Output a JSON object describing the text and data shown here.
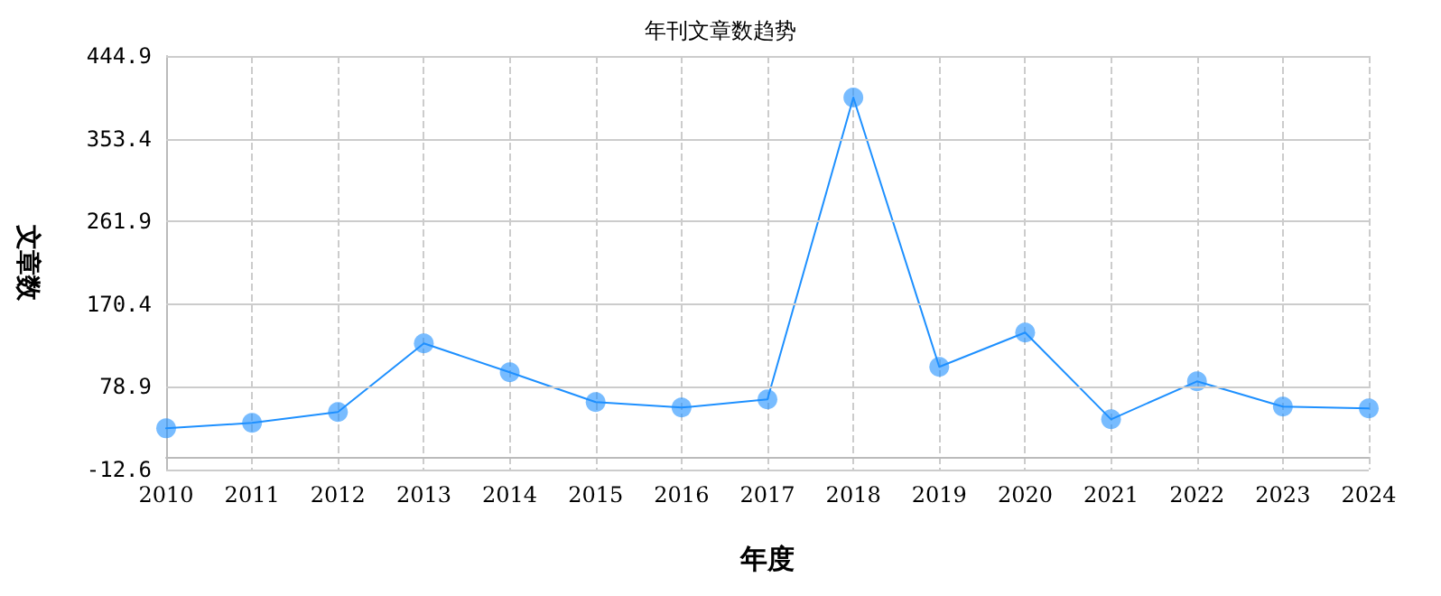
{
  "chart_data": {
    "type": "line",
    "title": "年刊文章数趋势",
    "xlabel": "年度",
    "ylabel": "文章数",
    "categories": [
      "2010",
      "2011",
      "2012",
      "2013",
      "2014",
      "2015",
      "2016",
      "2017",
      "2018",
      "2019",
      "2020",
      "2021",
      "2022",
      "2023",
      "2024"
    ],
    "series": [
      {
        "color": "#1e90ff",
        "values": [
          33,
          39,
          51,
          127,
          95,
          62,
          56,
          65,
          399,
          101,
          139,
          43,
          85,
          57,
          55
        ]
      }
    ],
    "ylim": [
      -12.6,
      444.9
    ],
    "yticks": [
      -12.6,
      78.9,
      170.4,
      261.9,
      353.4,
      444.9
    ],
    "grid": true,
    "marker": "circle",
    "line_style": "solid"
  }
}
